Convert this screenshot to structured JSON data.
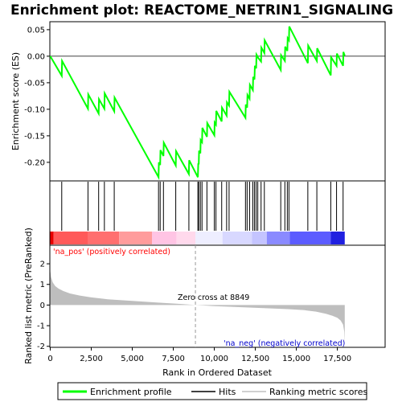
{
  "chart_data": {
    "type": "line",
    "title": "Enrichment plot: REACTOME_NETRIN1_SIGNALING",
    "top_panel": {
      "ylabel": "Enrichment score (ES)",
      "ylim": [
        -0.235,
        0.065
      ],
      "yticks": [
        0.05,
        0.0,
        -0.05,
        -0.1,
        -0.15,
        -0.2
      ],
      "ytick_labels": [
        "0.05",
        "0.00",
        "-0.05",
        "-0.10",
        "-0.15",
        "-0.20"
      ],
      "series_name": "Enrichment profile",
      "line_color": "#00ff00",
      "profile": [
        [
          0,
          0.0
        ],
        [
          700,
          -0.037
        ],
        [
          720,
          -0.009
        ],
        [
          2300,
          -0.099
        ],
        [
          2320,
          -0.072
        ],
        [
          2950,
          -0.108
        ],
        [
          2970,
          -0.081
        ],
        [
          3300,
          -0.099
        ],
        [
          3320,
          -0.07
        ],
        [
          3900,
          -0.104
        ],
        [
          3920,
          -0.078
        ],
        [
          6600,
          -0.228
        ],
        [
          6620,
          -0.2
        ],
        [
          6700,
          -0.205
        ],
        [
          6720,
          -0.177
        ],
        [
          6900,
          -0.188
        ],
        [
          6920,
          -0.163
        ],
        [
          7650,
          -0.206
        ],
        [
          7670,
          -0.179
        ],
        [
          8450,
          -0.222
        ],
        [
          8470,
          -0.196
        ],
        [
          9000,
          -0.228
        ],
        [
          9020,
          -0.202
        ],
        [
          9050,
          -0.204
        ],
        [
          9070,
          -0.178
        ],
        [
          9150,
          -0.183
        ],
        [
          9170,
          -0.158
        ],
        [
          9250,
          -0.162
        ],
        [
          9270,
          -0.135
        ],
        [
          9550,
          -0.152
        ],
        [
          9570,
          -0.126
        ],
        [
          10000,
          -0.149
        ],
        [
          10020,
          -0.125
        ],
        [
          10100,
          -0.129
        ],
        [
          10120,
          -0.103
        ],
        [
          10450,
          -0.123
        ],
        [
          10470,
          -0.097
        ],
        [
          10750,
          -0.112
        ],
        [
          10770,
          -0.087
        ],
        [
          10900,
          -0.093
        ],
        [
          10920,
          -0.067
        ],
        [
          11900,
          -0.116
        ],
        [
          11920,
          -0.091
        ],
        [
          12000,
          -0.097
        ],
        [
          12020,
          -0.073
        ],
        [
          12150,
          -0.08
        ],
        [
          12170,
          -0.054
        ],
        [
          12350,
          -0.064
        ],
        [
          12370,
          -0.039
        ],
        [
          12450,
          -0.044
        ],
        [
          12470,
          -0.018
        ],
        [
          12550,
          -0.023
        ],
        [
          12570,
          0.003
        ],
        [
          12650,
          -0.001
        ],
        [
          12670,
          -0.003
        ],
        [
          12850,
          -0.01
        ],
        [
          12870,
          0.016
        ],
        [
          13050,
          0.006
        ],
        [
          13070,
          0.03
        ],
        [
          14050,
          -0.026
        ],
        [
          14070,
          0.002
        ],
        [
          14300,
          -0.009
        ],
        [
          14320,
          0.018
        ],
        [
          14450,
          0.01
        ],
        [
          14470,
          0.034
        ],
        [
          14550,
          0.03
        ],
        [
          14570,
          0.056
        ],
        [
          15700,
          -0.013
        ],
        [
          15720,
          0.02
        ],
        [
          16250,
          -0.009
        ],
        [
          16270,
          0.015
        ],
        [
          17100,
          -0.036
        ],
        [
          17120,
          -0.002
        ],
        [
          17450,
          -0.018
        ],
        [
          17470,
          0.005
        ],
        [
          17850,
          -0.018
        ],
        [
          17870,
          0.008
        ],
        [
          17950,
          0.001
        ]
      ]
    },
    "hits": [
      700,
      2300,
      2950,
      3300,
      3900,
      6600,
      6700,
      6900,
      7650,
      8450,
      9000,
      9050,
      9150,
      9250,
      9550,
      10000,
      10100,
      10450,
      10750,
      10900,
      11900,
      12000,
      12150,
      12350,
      12450,
      12550,
      12650,
      12850,
      13050,
      14050,
      14300,
      14450,
      14550,
      15700,
      16250,
      17100,
      17450,
      17850
    ],
    "bottom_panel": {
      "ylabel": "Ranked list metric (PreRanked)",
      "xlabel": "Rank in Ordered Dataset",
      "ylim": [
        -2.05,
        2.9
      ],
      "yticks": [
        2,
        1,
        0,
        -1,
        -2
      ],
      "ytick_labels": [
        "2",
        "1",
        "0",
        "-1",
        "-2"
      ],
      "xlim": [
        0,
        18500
      ],
      "xticks": [
        0,
        2500,
        5000,
        7500,
        10000,
        12500,
        15000,
        17500
      ],
      "xtick_labels": [
        "0",
        "2,500",
        "5,000",
        "7,500",
        "10,000",
        "12,500",
        "15,000",
        "17,500"
      ],
      "zero_cross": 8849,
      "metric_curve": [
        [
          0,
          1.65
        ],
        [
          50,
          1.35
        ],
        [
          150,
          1.1
        ],
        [
          300,
          0.92
        ],
        [
          500,
          0.8
        ],
        [
          800,
          0.68
        ],
        [
          1200,
          0.56
        ],
        [
          1800,
          0.46
        ],
        [
          2500,
          0.37
        ],
        [
          3500,
          0.28
        ],
        [
          5000,
          0.2
        ],
        [
          6500,
          0.12
        ],
        [
          8000,
          0.05
        ],
        [
          8849,
          0.0
        ],
        [
          10000,
          -0.05
        ],
        [
          11500,
          -0.1
        ],
        [
          13000,
          -0.15
        ],
        [
          14500,
          -0.2
        ],
        [
          15500,
          -0.25
        ],
        [
          16200,
          -0.32
        ],
        [
          16800,
          -0.42
        ],
        [
          17200,
          -0.52
        ],
        [
          17500,
          -0.62
        ],
        [
          17700,
          -0.75
        ],
        [
          17850,
          -0.95
        ],
        [
          17920,
          -1.3
        ],
        [
          17950,
          -1.85
        ]
      ]
    },
    "annotations": {
      "pos_label": "'na_pos' (positively correlated)",
      "neg_label": "'na_neg' (negatively correlated)",
      "zero_label": "Zero cross at 8849"
    },
    "legend": {
      "position": "bottom",
      "items": [
        {
          "label": "Enrichment profile",
          "color": "#00ff00"
        },
        {
          "label": "Hits",
          "color": "#000000"
        },
        {
          "label": "Ranking metric scores",
          "color": "#c0c0c0"
        }
      ]
    },
    "colors": {
      "pos_label": "#ff0000",
      "neg_label": "#0000cc",
      "metric_fill": "#bebebe"
    }
  }
}
